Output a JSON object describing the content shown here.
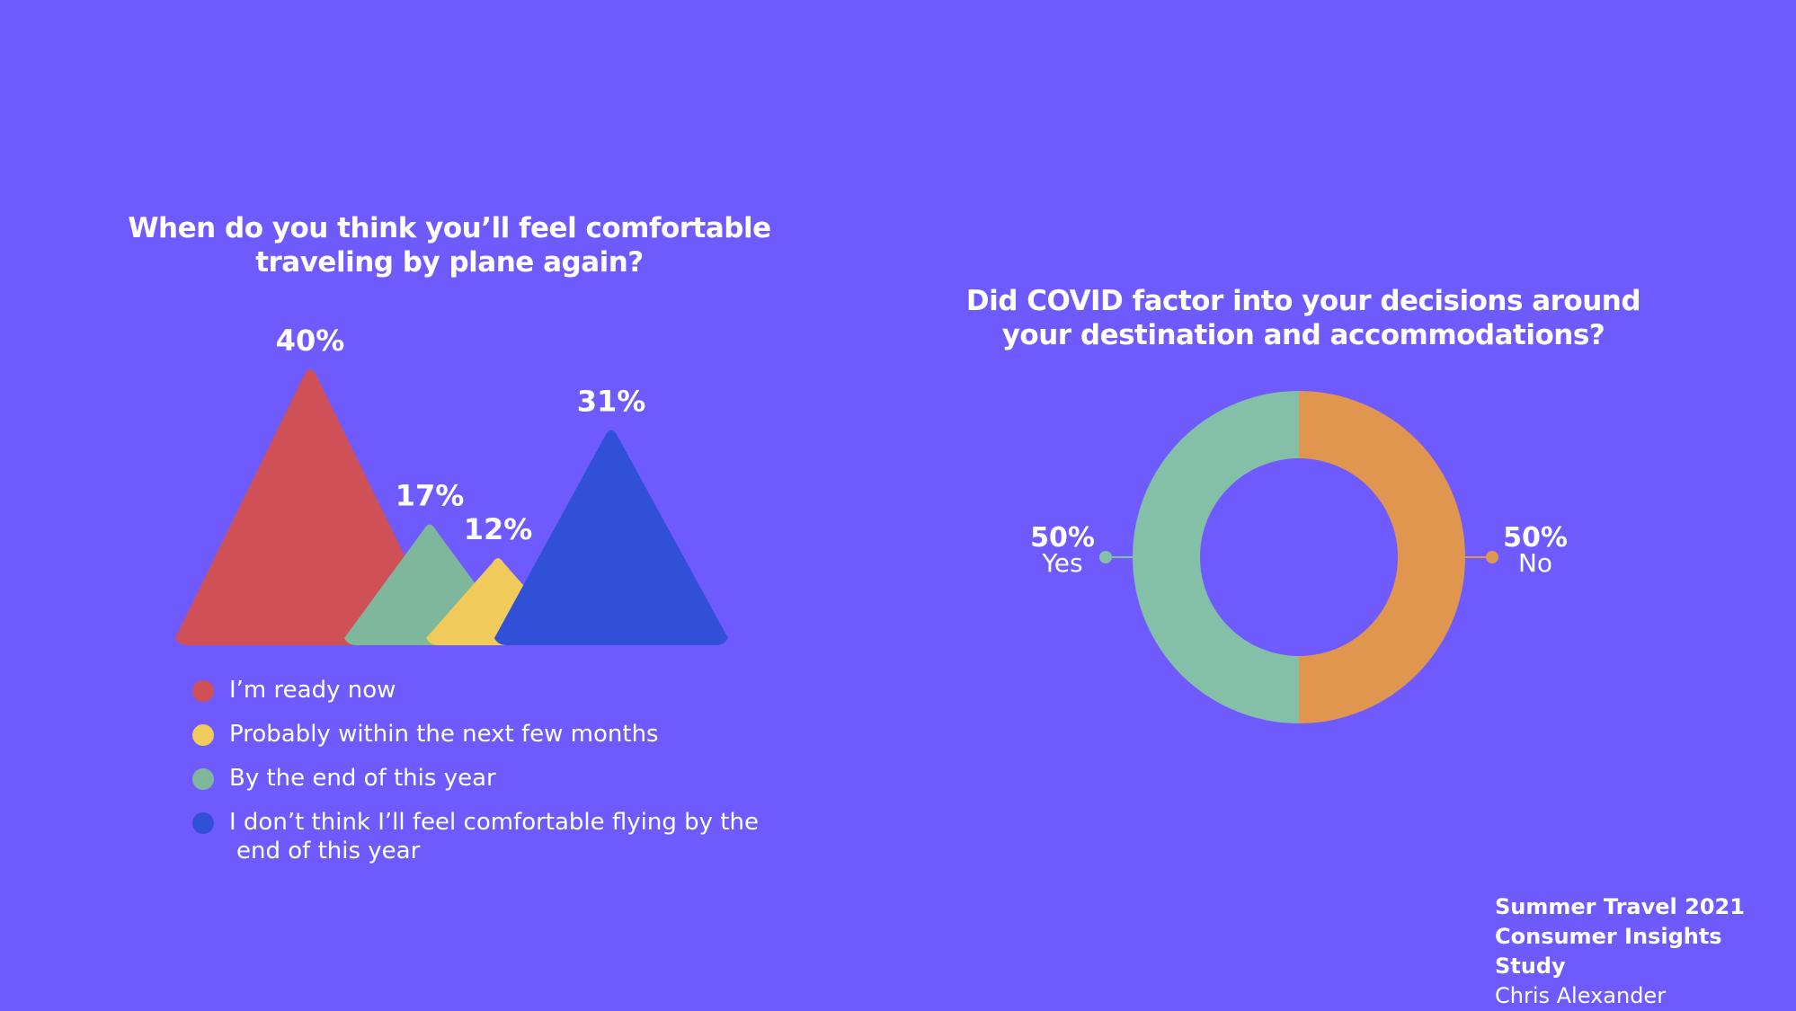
{
  "chart_data": [
    {
      "type": "area",
      "title": "When do you think you’ll feel comfortable traveling by plane again?",
      "categories": [
        "I’m ready now",
        "By the end of this year",
        "Probably within the next few months",
        "I don’t think I’ll feel comfortable flying by the end of this year"
      ],
      "values": [
        40,
        17,
        12,
        31
      ],
      "value_labels": [
        "40%",
        "17%",
        "12%",
        "31%"
      ],
      "colors": [
        "#cf5157",
        "#7eb79c",
        "#f0cb5c",
        "#3050d8"
      ],
      "legend": [
        {
          "label": "I’m ready now",
          "color": "#cf5157"
        },
        {
          "label": "Probably within the next few months",
          "color": "#f0cb5c"
        },
        {
          "label": "By the end of this year",
          "color": "#7eb79c"
        },
        {
          "label_line1": "I don’t think I’ll feel comfortable flying by the",
          "label_line2": "end of this year",
          "color": "#3050d8"
        }
      ],
      "legend_position": "bottom"
    },
    {
      "type": "pie",
      "title": "Did COVID factor into your decisions around your destination and accommodations?",
      "slices": [
        {
          "label": "No",
          "value": 50,
          "value_label": "50%",
          "color": "#e0964f"
        },
        {
          "label": "Yes",
          "value": 50,
          "value_label": "50%",
          "color": "#84bfa8"
        }
      ],
      "donut": true
    }
  ],
  "footer": {
    "line1": "Summer Travel  2021",
    "line2": "Consumer Insights Study",
    "line3": "Chris Alexander"
  }
}
